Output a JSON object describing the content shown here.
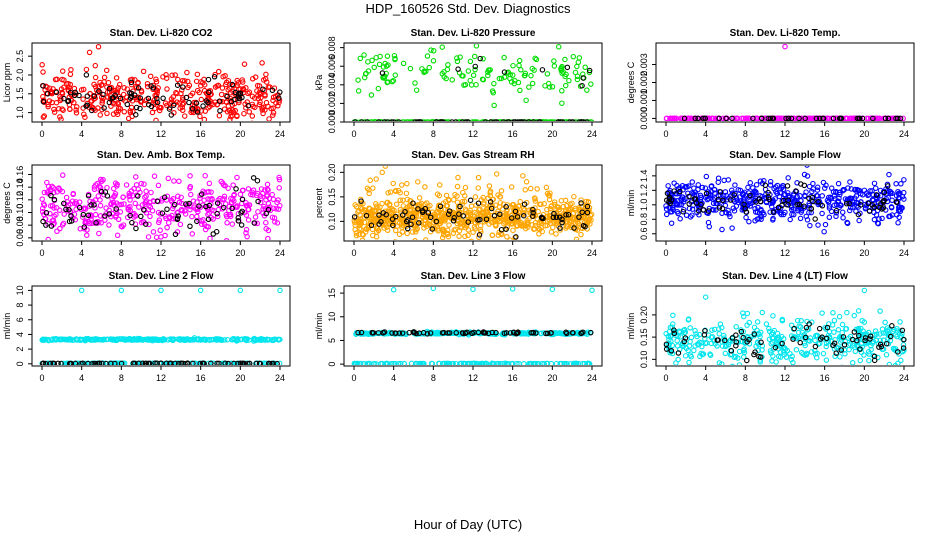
{
  "title": "HDP_160526  Std. Dev. Diagnostics",
  "x_axis_label": "Hour of Day (UTC)",
  "colors": {
    "red": "#ff0000",
    "green": "#00dd00",
    "magenta": "#ff00ff",
    "orange": "#ffa500",
    "blue": "#0000ff",
    "cyan": "#00e5ee",
    "black": "#000000"
  },
  "chart_data": [
    {
      "type": "scatter",
      "title": "Stan. Dev. Li-820 CO2",
      "ylabel": "Licor ppm",
      "xlim": [
        0,
        24
      ],
      "xticks": [
        "0",
        "4",
        "8",
        "12",
        "16",
        "20",
        "24"
      ],
      "ylim": [
        0.75,
        2.85
      ],
      "yticks": [
        "1.0",
        "1.5",
        "2.0",
        "2.5"
      ],
      "ytick_values": [
        1.0,
        1.5,
        2.0,
        2.5
      ],
      "series": [
        {
          "color": "#ff0000",
          "mean": 1.4,
          "spread": 0.32,
          "count": 420
        },
        {
          "color": "#000000",
          "mean": 1.4,
          "spread": 0.25,
          "count": 80
        }
      ],
      "extra_points": [
        {
          "x": 4.8,
          "y": 2.6,
          "color": "#ff0000"
        },
        {
          "x": 5.7,
          "y": 2.75,
          "color": "#ff0000"
        }
      ]
    },
    {
      "type": "scatter",
      "title": "Stan. Dev. Li-820 Pressure",
      "ylabel": "kPa",
      "xlim": [
        0,
        24
      ],
      "xticks": [
        "0",
        "4",
        "8",
        "12",
        "16",
        "20",
        "24"
      ],
      "ylim": [
        0,
        0.0085
      ],
      "yticks": [
        "0.000",
        "0.002",
        "0.004",
        "0.006",
        "0.008"
      ],
      "ytick_values": [
        0,
        0.002,
        0.004,
        0.006,
        0.008
      ],
      "series": [
        {
          "color": "#00dd00",
          "mean": 0.0052,
          "spread": 0.0012,
          "count": 150
        },
        {
          "color": "#00dd00",
          "mean": 0.0,
          "spread": 0.0,
          "count": 200
        },
        {
          "color": "#000000",
          "mean": 0.0,
          "spread": 0.0,
          "count": 60
        },
        {
          "color": "#000000",
          "mean": 0.0055,
          "spread": 0.0008,
          "count": 10
        }
      ],
      "extra_points": []
    },
    {
      "type": "scatter",
      "title": "Stan. Dev. Li-820 Temp.",
      "ylabel": "degrees C",
      "xlim": [
        0,
        24
      ],
      "xticks": [
        "0",
        "4",
        "8",
        "12",
        "16",
        "20",
        "24"
      ],
      "ylim": [
        -0.0002,
        0.0042
      ],
      "yticks": [
        "0.000",
        "0.001",
        "0.002",
        "0.003"
      ],
      "ytick_values": [
        0,
        0.001,
        0.002,
        0.003
      ],
      "series": [
        {
          "color": "#ff00ff",
          "mean": 0.0,
          "spread": 0.0,
          "count": 220
        },
        {
          "color": "#000000",
          "mean": 0.0,
          "spread": 0.0,
          "count": 40
        }
      ],
      "extra_points": [
        {
          "x": 12.0,
          "y": 0.004,
          "color": "#ff00ff"
        }
      ]
    },
    {
      "type": "scatter",
      "title": "Stan. Dev. Amb. Box Temp.",
      "ylabel": "degrees C",
      "xlim": [
        0,
        24
      ],
      "xticks": [
        "0",
        "4",
        "8",
        "12",
        "16",
        "20",
        "24"
      ],
      "ylim": [
        0.055,
        0.175
      ],
      "yticks": [
        "0.06",
        "0.08",
        "0.10",
        "0.12",
        "0.14",
        "0.16"
      ],
      "ytick_values": [
        0.06,
        0.08,
        0.1,
        0.12,
        0.14,
        0.16
      ],
      "series": [
        {
          "color": "#ff00ff",
          "mean": 0.108,
          "spread": 0.022,
          "count": 420
        },
        {
          "color": "#000000",
          "mean": 0.108,
          "spread": 0.018,
          "count": 70
        }
      ],
      "extra_points": []
    },
    {
      "type": "scatter",
      "title": "Stan. Dev. Gas Stream RH",
      "ylabel": "percent",
      "xlim": [
        0,
        24
      ],
      "xticks": [
        "0",
        "4",
        "8",
        "12",
        "16",
        "20",
        "24"
      ],
      "ylim": [
        0.06,
        0.215
      ],
      "yticks": [
        "0.10",
        "0.15",
        "0.20"
      ],
      "ytick_values": [
        0.1,
        0.15,
        0.2
      ],
      "series": [
        {
          "color": "#ffa500",
          "mean": 0.105,
          "spread": 0.018,
          "count": 700
        },
        {
          "color": "#ffa500",
          "mean": 0.15,
          "spread": 0.03,
          "count": 120
        },
        {
          "color": "#000000",
          "mean": 0.11,
          "spread": 0.018,
          "count": 80
        }
      ],
      "extra_points": []
    },
    {
      "type": "scatter",
      "title": "Stan. Dev. Sample Flow",
      "ylabel": "ml/min",
      "xlim": [
        0,
        24
      ],
      "xticks": [
        "0",
        "4",
        "8",
        "12",
        "16",
        "20",
        "24"
      ],
      "ylim": [
        0.5,
        1.55
      ],
      "yticks": [
        "0.6",
        "0.8",
        "1.0",
        "1.2",
        "1.4"
      ],
      "ytick_values": [
        0.6,
        0.8,
        1.0,
        1.2,
        1.4
      ],
      "series": [
        {
          "color": "#0000ff",
          "mean": 1.05,
          "spread": 0.14,
          "count": 520
        },
        {
          "color": "#000000",
          "mean": 1.05,
          "spread": 0.1,
          "count": 80
        }
      ],
      "extra_points": []
    },
    {
      "type": "scatter",
      "title": "Stan. Dev. Line 2 Flow",
      "ylabel": "ml/min",
      "xlim": [
        0,
        24
      ],
      "xticks": [
        "0",
        "4",
        "8",
        "12",
        "16",
        "20",
        "24"
      ],
      "ylim": [
        -0.3,
        10.6
      ],
      "yticks": [
        "0",
        "2",
        "4",
        "6",
        "8",
        "10"
      ],
      "ytick_values": [
        0,
        2,
        4,
        6,
        8,
        10
      ],
      "series": [
        {
          "color": "#00e5ee",
          "mean": 3.3,
          "spread": 0.06,
          "count": 300
        },
        {
          "color": "#00e5ee",
          "mean": 0.05,
          "spread": 0.02,
          "count": 150
        },
        {
          "color": "#000000",
          "mean": 0.05,
          "spread": 0.02,
          "count": 80
        }
      ],
      "extra_points": [
        {
          "x": 4,
          "y": 10.0,
          "color": "#00e5ee"
        },
        {
          "x": 8,
          "y": 10.0,
          "color": "#00e5ee"
        },
        {
          "x": 12,
          "y": 10.0,
          "color": "#00e5ee"
        },
        {
          "x": 16,
          "y": 10.0,
          "color": "#00e5ee"
        },
        {
          "x": 20,
          "y": 10.0,
          "color": "#00e5ee"
        },
        {
          "x": 24,
          "y": 10.0,
          "color": "#00e5ee"
        }
      ]
    },
    {
      "type": "scatter",
      "title": "Stan. Dev. Line 3 Flow",
      "ylabel": "ml/min",
      "xlim": [
        0,
        24
      ],
      "xticks": [
        "0",
        "4",
        "8",
        "12",
        "16",
        "20",
        "24"
      ],
      "ylim": [
        -0.4,
        16.5
      ],
      "yticks": [
        "0",
        "5",
        "10",
        "15"
      ],
      "ytick_values": [
        0,
        5,
        10,
        15
      ],
      "series": [
        {
          "color": "#00e5ee",
          "mean": 6.5,
          "spread": 0.12,
          "count": 250
        },
        {
          "color": "#00e5ee",
          "mean": 0.1,
          "spread": 0.03,
          "count": 150
        },
        {
          "color": "#000000",
          "mean": 6.6,
          "spread": 0.1,
          "count": 70
        }
      ],
      "extra_points": [
        {
          "x": 4,
          "y": 15.7,
          "color": "#00e5ee"
        },
        {
          "x": 8,
          "y": 16.0,
          "color": "#00e5ee"
        },
        {
          "x": 12,
          "y": 15.8,
          "color": "#00e5ee"
        },
        {
          "x": 16,
          "y": 15.9,
          "color": "#00e5ee"
        },
        {
          "x": 20,
          "y": 15.8,
          "color": "#00e5ee"
        },
        {
          "x": 24,
          "y": 15.6,
          "color": "#00e5ee"
        }
      ]
    },
    {
      "type": "scatter",
      "title": "Stan. Dev. Line 4 (LT) Flow",
      "ylabel": "ml/min",
      "xlim": [
        0,
        24
      ],
      "xticks": [
        "0",
        "4",
        "8",
        "12",
        "16",
        "20",
        "24"
      ],
      "ylim": [
        0.085,
        0.265
      ],
      "yticks": [
        "0.10",
        "0.15",
        "0.20"
      ],
      "ytick_values": [
        0.1,
        0.15,
        0.2
      ],
      "series": [
        {
          "color": "#00e5ee",
          "mean": 0.14,
          "spread": 0.025,
          "count": 420
        },
        {
          "color": "#000000",
          "mean": 0.14,
          "spread": 0.02,
          "count": 70
        }
      ],
      "extra_points": [
        {
          "x": 4,
          "y": 0.24,
          "color": "#00e5ee"
        },
        {
          "x": 20,
          "y": 0.255,
          "color": "#00e5ee"
        }
      ]
    }
  ]
}
